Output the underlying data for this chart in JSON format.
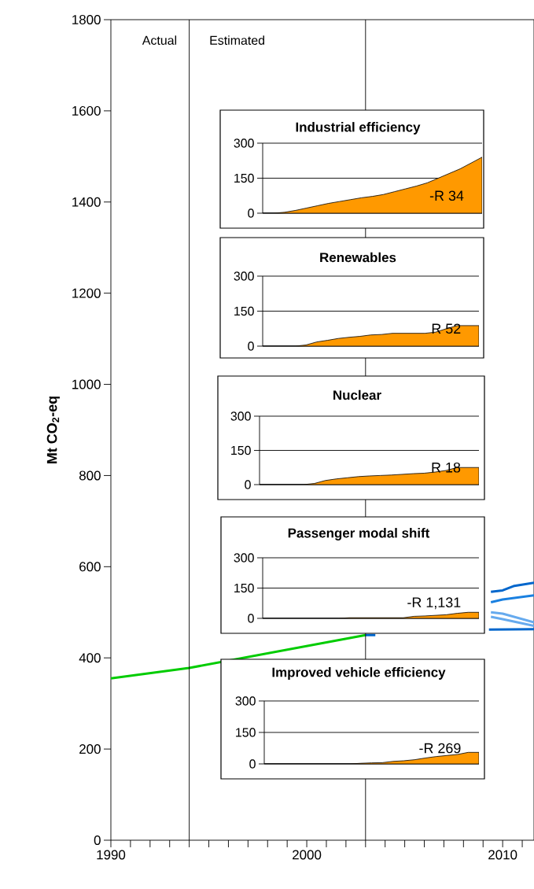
{
  "chart_data": [
    {
      "type": "line",
      "ylabel": "Mt CO$_{2}$-eq",
      "xlim": [
        1990,
        2011.6
      ],
      "ylim": [
        0,
        1800
      ],
      "xticks": [
        1990,
        {
          "value": 1991,
          "label": null
        },
        {
          "value": 1992,
          "label": null
        },
        {
          "value": 1993,
          "label": null
        },
        {
          "value": 1994,
          "label": null
        },
        {
          "value": 1995,
          "label": null
        },
        {
          "value": 1996,
          "label": null
        },
        {
          "value": 1997,
          "label": null
        },
        {
          "value": 1998,
          "label": null
        },
        {
          "value": 1999,
          "label": null
        },
        2000,
        {
          "value": 2001,
          "label": null
        },
        {
          "value": 2002,
          "label": null
        },
        {
          "value": 2003,
          "label": null
        },
        {
          "value": 2004,
          "label": null
        },
        {
          "value": 2005,
          "label": null
        },
        {
          "value": 2006,
          "label": null
        },
        {
          "value": 2007,
          "label": null
        },
        {
          "value": 2008,
          "label": null
        },
        {
          "value": 2009,
          "label": null
        },
        2010,
        {
          "value": 2011,
          "label": null
        }
      ],
      "yticks": [
        0,
        200,
        400,
        600,
        800,
        1000,
        1200,
        1400,
        1600,
        1800
      ],
      "ref_lines": [
        {
          "axis": "x",
          "value": 1994,
          "label": "Actual"
        },
        {
          "axis": "x",
          "value": 2003
        }
      ],
      "annotations": [
        "Estimated"
      ],
      "series": [
        {
          "color": "#00cc00",
          "x": [
            1990,
            1994,
            2003
          ],
          "values": [
            355,
            378,
            450
          ]
        },
        {
          "color": "#0066cc",
          "x": [
            2003,
            2003.5,
            2006,
            2009.3,
            2011.6
          ],
          "values": [
            450,
            450,
            null,
            462,
            463
          ]
        },
        {
          "color": "#0066cc",
          "x": [
            2009.4,
            2010,
            2010.6,
            2011.6
          ],
          "values": [
            545,
            548,
            558,
            565
          ]
        },
        {
          "color": "#1a80e0",
          "x": [
            2009.4,
            2010,
            2011.6
          ],
          "values": [
            522,
            528,
            537
          ]
        },
        {
          "color": "#66aaee",
          "x": [
            2009.4,
            2010,
            2011.6
          ],
          "values": [
            500,
            497,
            478
          ]
        },
        {
          "color": "#66aaee",
          "x": [
            2009.4,
            2010,
            2011.6
          ],
          "values": [
            490,
            485,
            470
          ]
        }
      ]
    },
    {
      "type": "area",
      "title": "Industrial efficiency",
      "categories": [
        null,
        null,
        null,
        null,
        null,
        null,
        null,
        null,
        null,
        null,
        null,
        null,
        null,
        null,
        null,
        null,
        null,
        null,
        null,
        null,
        null
      ],
      "ylim": [
        0,
        300
      ],
      "yticks": [
        0,
        150,
        300
      ],
      "grid": "y",
      "tick_labels": "y",
      "annotations": [
        "-R 34"
      ],
      "series": [
        {
          "color": "#ff9900",
          "values": [
            0,
            0,
            4,
            12,
            22,
            32,
            42,
            50,
            58,
            66,
            72,
            80,
            92,
            104,
            116,
            130,
            150,
            170,
            190,
            215,
            240
          ]
        }
      ]
    },
    {
      "type": "area",
      "title": "Renewables",
      "categories": [
        null,
        null,
        null,
        null,
        null,
        null,
        null,
        null,
        null,
        null,
        null,
        null,
        null,
        null,
        null,
        null,
        null,
        null,
        null,
        null,
        null
      ],
      "ylim": [
        0,
        300
      ],
      "yticks": [
        0,
        150,
        300
      ],
      "grid": "y",
      "tick_labels": "y",
      "annotations": [
        "R 52"
      ],
      "series": [
        {
          "color": "#ff9900",
          "values": [
            0,
            0,
            0,
            0,
            5,
            18,
            25,
            33,
            38,
            42,
            48,
            50,
            55,
            55,
            55,
            55,
            60,
            75,
            88,
            88,
            88
          ]
        }
      ]
    },
    {
      "type": "area",
      "title": "Nuclear",
      "categories": [
        null,
        null,
        null,
        null,
        null,
        null,
        null,
        null,
        null,
        null,
        null,
        null,
        null,
        null,
        null,
        null,
        null,
        null,
        null,
        null,
        null
      ],
      "ylim": [
        0,
        300
      ],
      "yticks": [
        0,
        150,
        300
      ],
      "grid": "y",
      "tick_labels": "y",
      "annotations": [
        "R 18"
      ],
      "series": [
        {
          "color": "#ff9900",
          "values": [
            0,
            0,
            0,
            0,
            0,
            5,
            18,
            25,
            30,
            35,
            38,
            40,
            42,
            45,
            48,
            50,
            55,
            62,
            75,
            75,
            75
          ]
        }
      ]
    },
    {
      "type": "area",
      "title": "Passenger modal shift",
      "categories": [
        null,
        null,
        null,
        null,
        null,
        null,
        null,
        null,
        null,
        null,
        null,
        null,
        null,
        null,
        null,
        null,
        null,
        null,
        null,
        null,
        null
      ],
      "ylim": [
        0,
        300
      ],
      "yticks": [
        0,
        150,
        300
      ],
      "grid": "y",
      "tick_labels": "y",
      "annotations": [
        "-R 1,131"
      ],
      "series": [
        {
          "color": "#ff9900",
          "values": [
            0,
            0,
            0,
            0,
            0,
            0,
            0,
            0,
            3,
            3,
            3,
            3,
            3,
            3,
            10,
            12,
            15,
            18,
            25,
            30,
            30
          ]
        }
      ]
    },
    {
      "type": "area",
      "title": "Improved vehicle efficiency",
      "categories": [
        null,
        null,
        null,
        null,
        null,
        null,
        null,
        null,
        null,
        null,
        null,
        null,
        null,
        null,
        null,
        null,
        null,
        null,
        null,
        null,
        null
      ],
      "ylim": [
        0,
        300
      ],
      "yticks": [
        0,
        150,
        300
      ],
      "grid": "y",
      "tick_labels": "y",
      "annotations": [
        "-R 269"
      ],
      "series": [
        {
          "color": "#ff9900",
          "values": [
            0,
            0,
            0,
            0,
            0,
            0,
            0,
            0,
            0,
            3,
            5,
            6,
            12,
            15,
            20,
            28,
            35,
            40,
            45,
            55,
            55
          ]
        }
      ]
    }
  ]
}
